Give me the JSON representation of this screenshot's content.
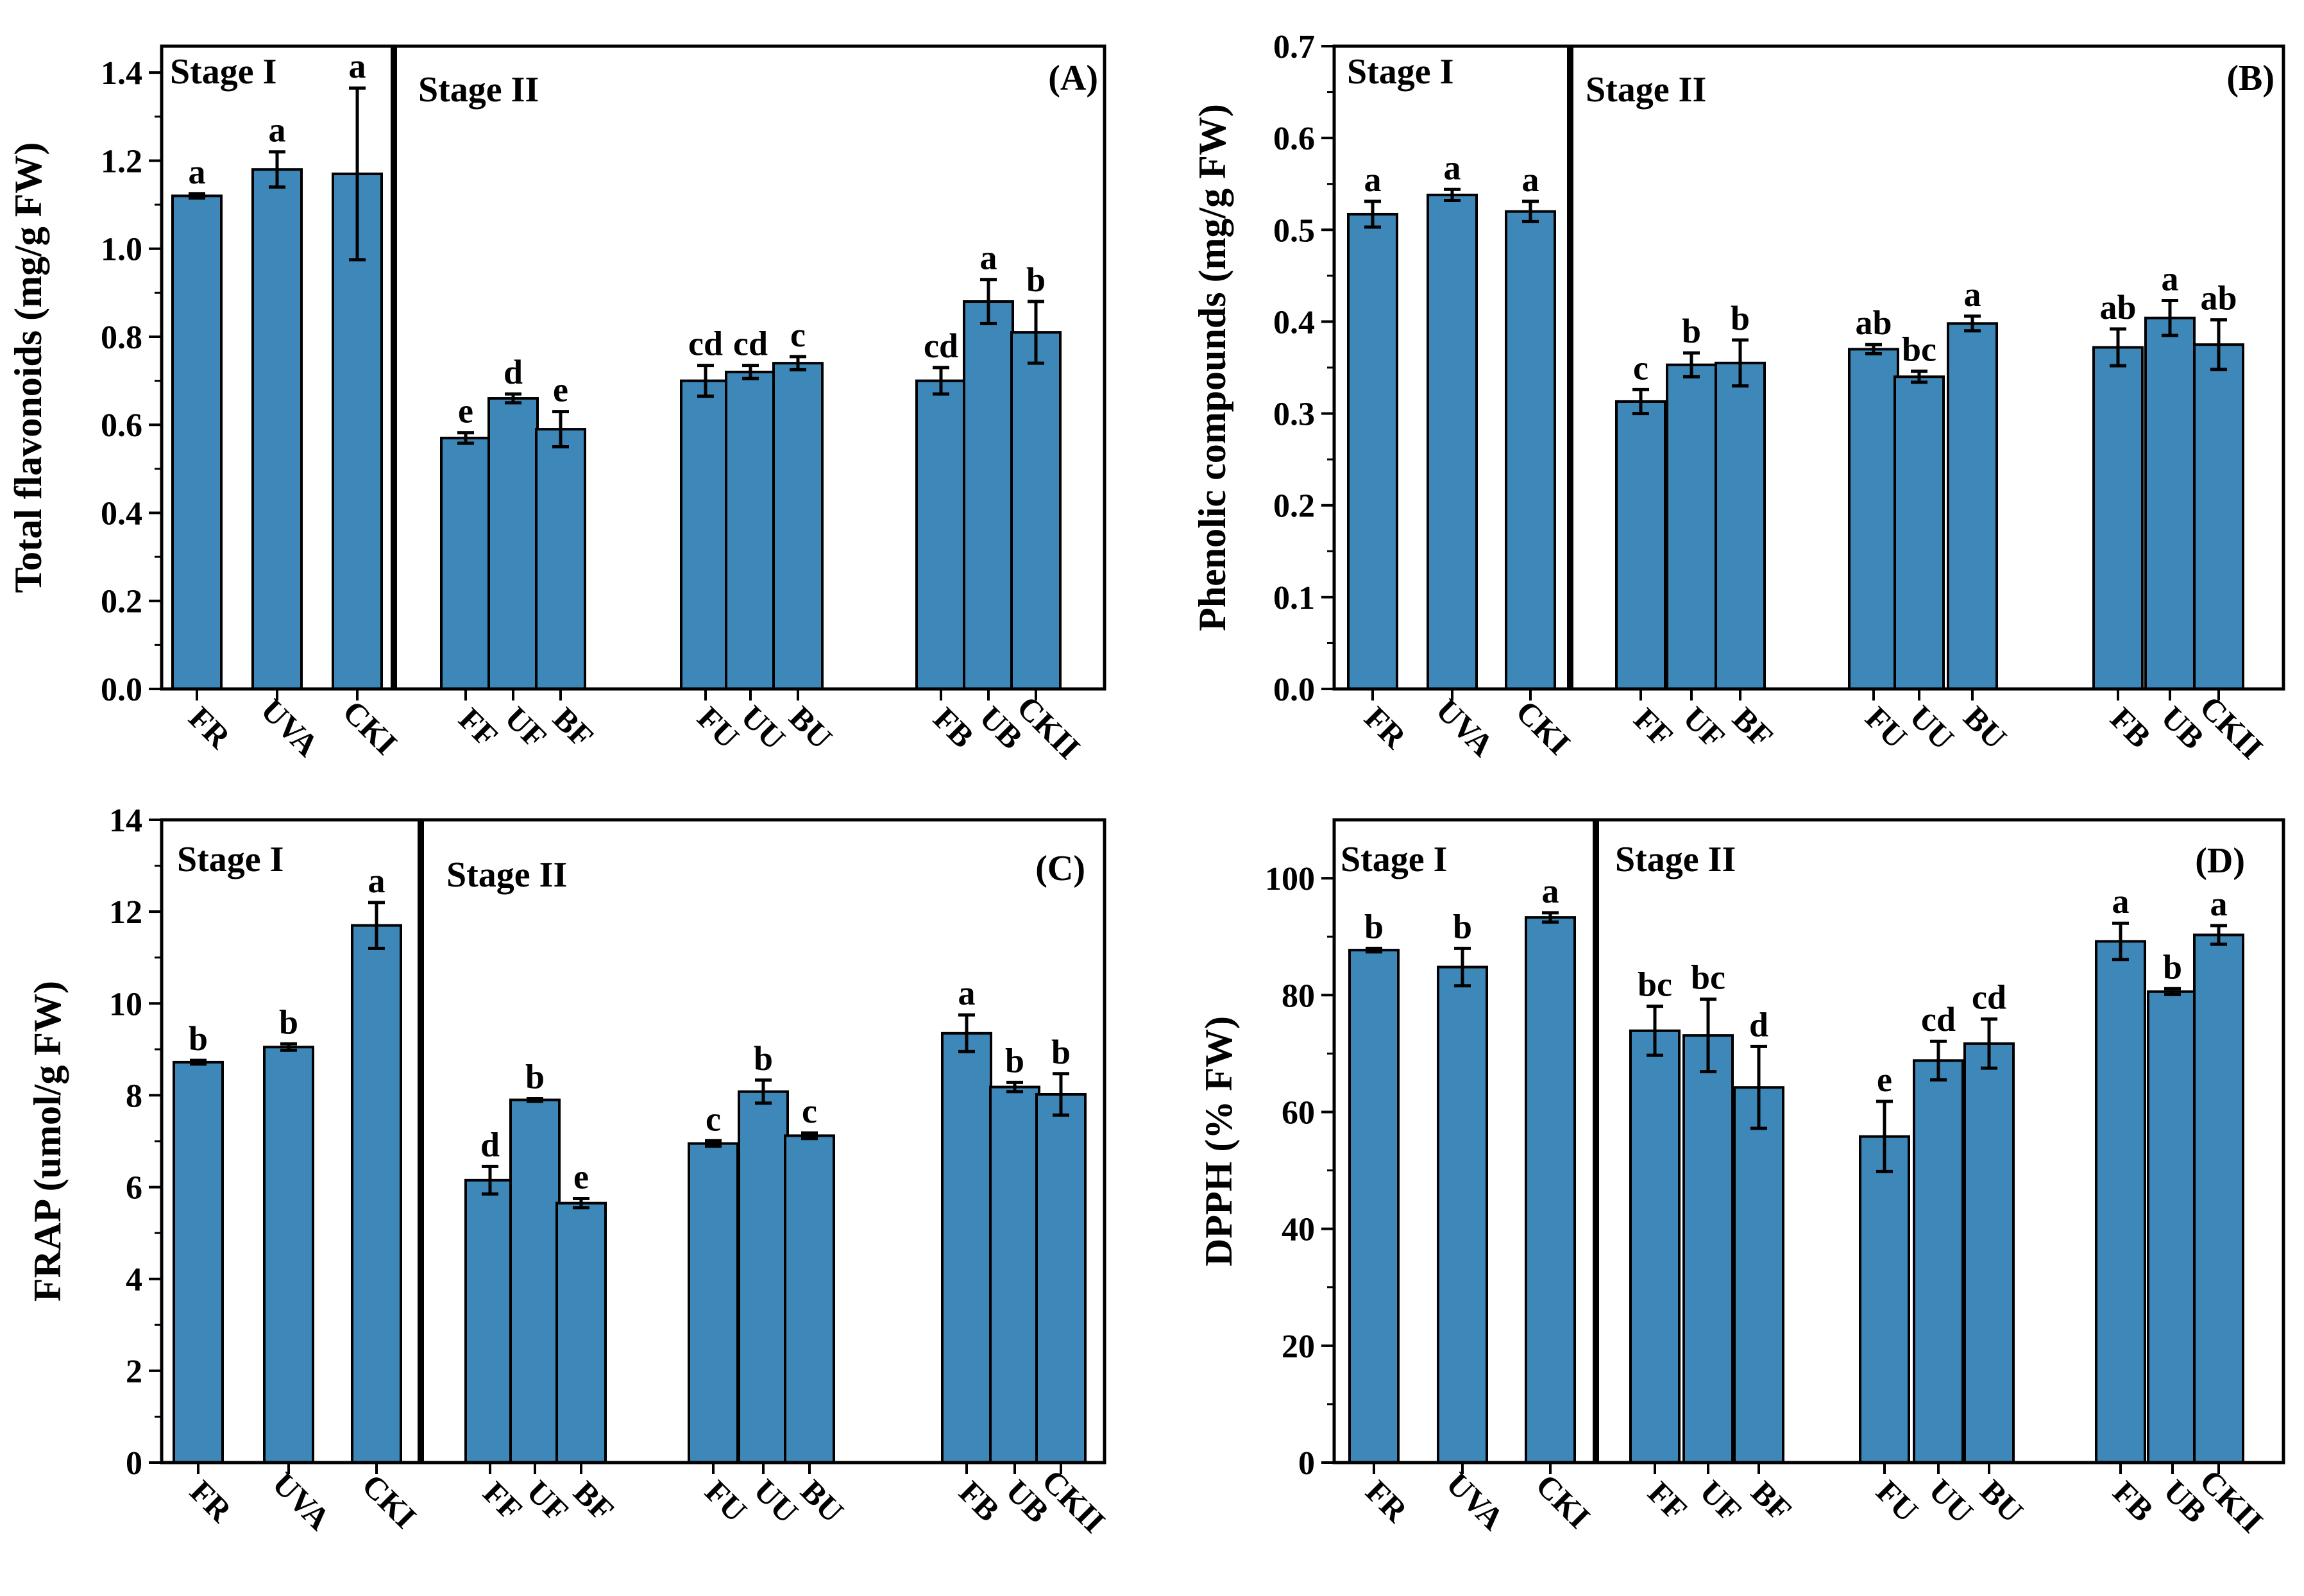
{
  "figure": {
    "bar_color": "#3d87b9",
    "edge_color": "#000000"
  },
  "chart_data": [
    {
      "type": "bar",
      "panel_label": "(A)",
      "title": "",
      "xlabel": "",
      "ylabel": "Total flavonoids (mg/g FW)",
      "ylim": [
        0,
        1.46
      ],
      "yticks": [
        "0.0",
        "0.2",
        "0.4",
        "0.6",
        "0.8",
        "1.0",
        "1.2",
        "1.4"
      ],
      "stage_labels": [
        "Stage I",
        "Stage II"
      ],
      "categories": [
        "FR",
        "UVA",
        "CKI",
        "FF",
        "UF",
        "BF",
        "FU",
        "UU",
        "BU",
        "FB",
        "UB",
        "CKII"
      ],
      "values": [
        1.12,
        1.18,
        1.17,
        0.57,
        0.66,
        0.59,
        0.7,
        0.72,
        0.74,
        0.7,
        0.88,
        0.81
      ],
      "errors": [
        0.005,
        0.04,
        0.195,
        0.012,
        0.01,
        0.04,
        0.035,
        0.015,
        0.015,
        0.03,
        0.05,
        0.07
      ],
      "letters": [
        "a",
        "a",
        "a",
        "e",
        "d",
        "e",
        "cd",
        "cd",
        "c",
        "cd",
        "a",
        "b"
      ]
    },
    {
      "type": "bar",
      "panel_label": "(B)",
      "title": "",
      "xlabel": "",
      "ylabel": "Phenolic compounds (mg/g FW)",
      "ylim": [
        0,
        0.7
      ],
      "yticks": [
        "0.0",
        "0.1",
        "0.2",
        "0.3",
        "0.4",
        "0.5",
        "0.6",
        "0.7"
      ],
      "stage_labels": [
        "Stage I",
        "Stage II"
      ],
      "categories": [
        "FR",
        "UVA",
        "CKI",
        "FF",
        "UF",
        "BF",
        "FU",
        "UU",
        "BU",
        "FB",
        "UB",
        "CKII"
      ],
      "values": [
        0.517,
        0.538,
        0.52,
        0.313,
        0.353,
        0.355,
        0.37,
        0.34,
        0.398,
        0.372,
        0.404,
        0.375
      ],
      "errors": [
        0.014,
        0.006,
        0.011,
        0.013,
        0.013,
        0.025,
        0.005,
        0.006,
        0.008,
        0.02,
        0.019,
        0.027
      ],
      "letters": [
        "a",
        "a",
        "a",
        "c",
        "b",
        "b",
        "ab",
        "bc",
        "a",
        "ab",
        "a",
        "ab"
      ]
    },
    {
      "type": "bar",
      "panel_label": "(C)",
      "title": "",
      "xlabel": "",
      "ylabel": "FRAP (umol/g FW)",
      "ylim": [
        0,
        14
      ],
      "yticks": [
        "0",
        "2",
        "4",
        "6",
        "8",
        "10",
        "12",
        "14"
      ],
      "stage_labels": [
        "Stage I",
        "Stage II"
      ],
      "categories": [
        "FR",
        "UVA",
        "CKI",
        "FF",
        "UF",
        "BF",
        "FU",
        "UU",
        "BU",
        "FB",
        "UB",
        "CKII"
      ],
      "values": [
        8.72,
        9.05,
        11.7,
        6.15,
        7.9,
        5.65,
        6.95,
        8.08,
        7.12,
        9.35,
        8.18,
        8.02
      ],
      "errors": [
        0.04,
        0.07,
        0.5,
        0.3,
        0.03,
        0.1,
        0.06,
        0.25,
        0.06,
        0.4,
        0.1,
        0.45
      ],
      "letters": [
        "b",
        "b",
        "a",
        "d",
        "b",
        "e",
        "c",
        "b",
        "c",
        "a",
        "b",
        "b"
      ]
    },
    {
      "type": "bar",
      "panel_label": "(D)",
      "title": "",
      "xlabel": "",
      "ylabel": "DPPH (% FW)",
      "ylim": [
        0,
        110
      ],
      "yticks": [
        "0",
        "20",
        "40",
        "60",
        "80",
        "100"
      ],
      "stage_labels": [
        "Stage I",
        "Stage II"
      ],
      "categories": [
        "FR",
        "UVA",
        "CKI",
        "FF",
        "UF",
        "BF",
        "FU",
        "UU",
        "BU",
        "FB",
        "UB",
        "CKII"
      ],
      "values": [
        87.7,
        84.8,
        93.3,
        73.9,
        73.1,
        64.2,
        55.8,
        68.8,
        71.7,
        89.2,
        80.6,
        90.3
      ],
      "errors": [
        0.3,
        3.2,
        0.8,
        4.2,
        6.2,
        7.0,
        6.0,
        3.3,
        4.2,
        3.1,
        0.5,
        1.6
      ],
      "letters": [
        "b",
        "b",
        "a",
        "bc",
        "bc",
        "d",
        "e",
        "cd",
        "cd",
        "a",
        "b",
        "a"
      ]
    }
  ]
}
